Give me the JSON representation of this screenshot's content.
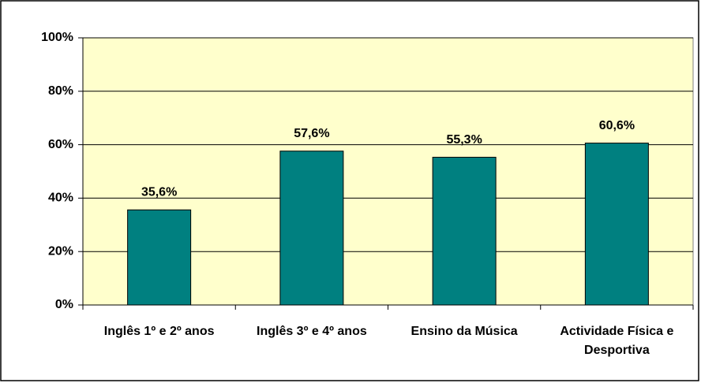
{
  "chart_data": {
    "type": "bar",
    "categories": [
      "Inglês 1º e 2º anos",
      "Inglês 3º e 4º anos",
      "Ensino da Música",
      "Actividade Física e Desportiva"
    ],
    "values": [
      35.6,
      57.6,
      55.3,
      60.6
    ],
    "value_labels": [
      "35,6%",
      "57,6%",
      "55,3%",
      "60,6%"
    ],
    "color": "#008080",
    "ylim": [
      0,
      100
    ],
    "yticks": [
      {
        "value": 0,
        "label": "0%"
      },
      {
        "value": 20,
        "label": "20%"
      },
      {
        "value": 40,
        "label": "40%"
      },
      {
        "value": 60,
        "label": "60%"
      },
      {
        "value": 80,
        "label": "80%"
      },
      {
        "value": 100,
        "label": "100%"
      }
    ],
    "grid": true
  }
}
